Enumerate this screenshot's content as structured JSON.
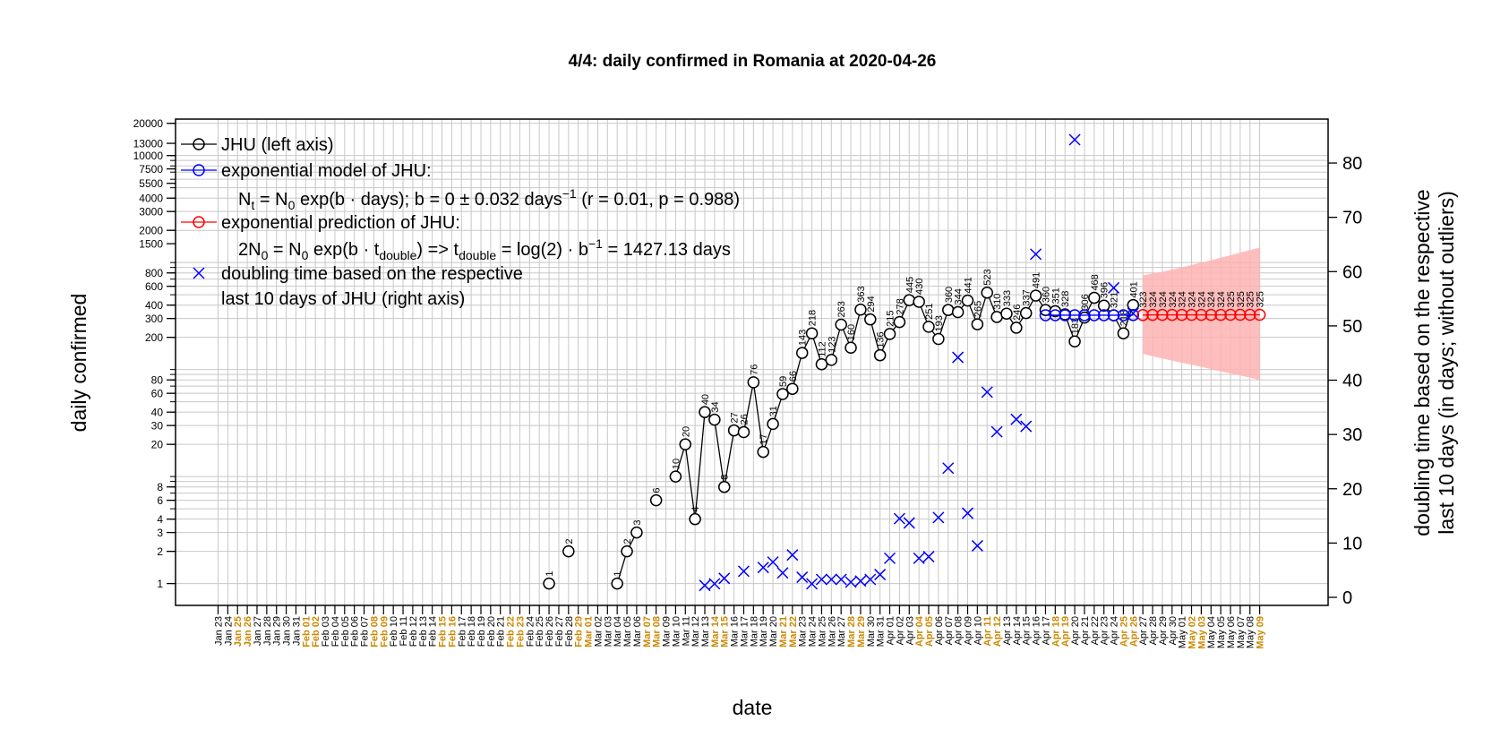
{
  "colors": {
    "observed": "#000000",
    "model": "#0000ff",
    "prediction": "#ff0000",
    "doubling": "#0000ff",
    "band": "#ffb3b3",
    "grid": "#c8c8c8",
    "weekend": "#cc8800",
    "date_text": "#000000"
  },
  "chart_data": {
    "type": "scatter",
    "title": "4/4: daily confirmed in Romania at 2020-04-26",
    "xlabel": "date",
    "ylabel_left": "daily confirmed",
    "ylabel_right_line1": "doubling time based on the respective",
    "ylabel_right_line2": "last 10 days (in days; without outliers)",
    "left_axis_log": true,
    "left_ticks": [
      "20000",
      "13000",
      "10000",
      "7500",
      "5500",
      "4000",
      "3000",
      "2000",
      "1500",
      "800",
      "600",
      "400",
      "300",
      "200",
      "80",
      "60",
      "40",
      "30",
      "20",
      "8",
      "6",
      "4",
      "3",
      "2",
      "1"
    ],
    "right_ylim": [
      0,
      85
    ],
    "right_ticks": [
      "0",
      "10",
      "20",
      "30",
      "40",
      "50",
      "60",
      "70",
      "80"
    ],
    "grid": true,
    "x_dates": [
      "Jan 23",
      "Jan 24",
      "Jan 25",
      "Jan 26",
      "Jan 27",
      "Jan 28",
      "Jan 29",
      "Jan 30",
      "Jan 31",
      "Feb 01",
      "Feb 02",
      "Feb 03",
      "Feb 04",
      "Feb 05",
      "Feb 06",
      "Feb 07",
      "Feb 08",
      "Feb 09",
      "Feb 10",
      "Feb 11",
      "Feb 12",
      "Feb 13",
      "Feb 14",
      "Feb 15",
      "Feb 16",
      "Feb 17",
      "Feb 18",
      "Feb 19",
      "Feb 20",
      "Feb 21",
      "Feb 22",
      "Feb 23",
      "Feb 24",
      "Feb 25",
      "Feb 26",
      "Feb 27",
      "Feb 28",
      "Feb 29",
      "Mar 01",
      "Mar 02",
      "Mar 03",
      "Mar 04",
      "Mar 05",
      "Mar 06",
      "Mar 07",
      "Mar 08",
      "Mar 09",
      "Mar 10",
      "Mar 11",
      "Mar 12",
      "Mar 13",
      "Mar 14",
      "Mar 15",
      "Mar 16",
      "Mar 17",
      "Mar 18",
      "Mar 19",
      "Mar 20",
      "Mar 21",
      "Mar 22",
      "Mar 23",
      "Mar 24",
      "Mar 25",
      "Mar 26",
      "Mar 27",
      "Mar 28",
      "Mar 29",
      "Mar 30",
      "Mar 31",
      "Apr 01",
      "Apr 02",
      "Apr 03",
      "Apr 04",
      "Apr 05",
      "Apr 06",
      "Apr 07",
      "Apr 08",
      "Apr 09",
      "Apr 10",
      "Apr 11",
      "Apr 12",
      "Apr 13",
      "Apr 14",
      "Apr 15",
      "Apr 16",
      "Apr 17",
      "Apr 18",
      "Apr 19",
      "Apr 20",
      "Apr 21",
      "Apr 22",
      "Apr 23",
      "Apr 24",
      "Apr 25",
      "Apr 26",
      "Apr 27",
      "Apr 28",
      "Apr 29",
      "Apr 30",
      "May 01",
      "May 02",
      "May 03",
      "May 04",
      "May 05",
      "May 06",
      "May 07",
      "May 08",
      "May 09"
    ],
    "weekend_dates": [
      "Jan 25",
      "Jan 26",
      "Feb 01",
      "Feb 02",
      "Feb 08",
      "Feb 09",
      "Feb 15",
      "Feb 16",
      "Feb 22",
      "Feb 23",
      "Feb 29",
      "Mar 01",
      "Mar 07",
      "Mar 08",
      "Mar 14",
      "Mar 15",
      "Mar 21",
      "Mar 22",
      "Mar 28",
      "Mar 29",
      "Apr 04",
      "Apr 05",
      "Apr 11",
      "Apr 12",
      "Apr 18",
      "Apr 19",
      "Apr 25",
      "Apr 26",
      "May 02",
      "May 03",
      "May 09"
    ],
    "series": [
      {
        "name": "JHU (left axis)",
        "points": [
          {
            "date": "Feb 26",
            "value": 1
          },
          {
            "date": "Feb 28",
            "value": 2
          },
          {
            "date": "Mar 04",
            "value": 1
          },
          {
            "date": "Mar 05",
            "value": 2
          },
          {
            "date": "Mar 06",
            "value": 3
          },
          {
            "date": "Mar 08",
            "value": 6
          },
          {
            "date": "Mar 10",
            "value": 10
          },
          {
            "date": "Mar 11",
            "value": 20
          },
          {
            "date": "Mar 12",
            "value": 4
          },
          {
            "date": "Mar 13",
            "value": 40
          },
          {
            "date": "Mar 14",
            "value": 34
          },
          {
            "date": "Mar 15",
            "value": 8
          },
          {
            "date": "Mar 16",
            "value": 27
          },
          {
            "date": "Mar 17",
            "value": 26
          },
          {
            "date": "Mar 18",
            "value": 76
          },
          {
            "date": "Mar 19",
            "value": 17
          },
          {
            "date": "Mar 20",
            "value": 31
          },
          {
            "date": "Mar 21",
            "value": 59
          },
          {
            "date": "Mar 22",
            "value": 66
          },
          {
            "date": "Mar 23",
            "value": 143
          },
          {
            "date": "Mar 24",
            "value": 218
          },
          {
            "date": "Mar 25",
            "value": 112
          },
          {
            "date": "Mar 26",
            "value": 123
          },
          {
            "date": "Mar 27",
            "value": 263
          },
          {
            "date": "Mar 28",
            "value": 160
          },
          {
            "date": "Mar 29",
            "value": 363
          },
          {
            "date": "Mar 30",
            "value": 294
          },
          {
            "date": "Mar 31",
            "value": 136
          },
          {
            "date": "Apr 01",
            "value": 215
          },
          {
            "date": "Apr 02",
            "value": 278
          },
          {
            "date": "Apr 03",
            "value": 445
          },
          {
            "date": "Apr 04",
            "value": 430
          },
          {
            "date": "Apr 05",
            "value": 251
          },
          {
            "date": "Apr 06",
            "value": 193
          },
          {
            "date": "Apr 07",
            "value": 360
          },
          {
            "date": "Apr 08",
            "value": 344
          },
          {
            "date": "Apr 09",
            "value": 441
          },
          {
            "date": "Apr 10",
            "value": 265
          },
          {
            "date": "Apr 11",
            "value": 523
          },
          {
            "date": "Apr 12",
            "value": 310
          },
          {
            "date": "Apr 13",
            "value": 333
          },
          {
            "date": "Apr 14",
            "value": 246
          },
          {
            "date": "Apr 15",
            "value": 337
          },
          {
            "date": "Apr 16",
            "value": 491
          },
          {
            "date": "Apr 17",
            "value": 360
          },
          {
            "date": "Apr 18",
            "value": 351
          },
          {
            "date": "Apr 19",
            "value": 328
          },
          {
            "date": "Apr 20",
            "value": 183
          },
          {
            "date": "Apr 21",
            "value": 306
          },
          {
            "date": "Apr 22",
            "value": 468
          },
          {
            "date": "Apr 23",
            "value": 396
          },
          {
            "date": "Apr 24",
            "value": 321
          },
          {
            "date": "Apr 25",
            "value": 218
          },
          {
            "date": "Apr 26",
            "value": 401
          }
        ]
      },
      {
        "name": "exponential model of JHU:",
        "dates": [
          "Apr 17",
          "Apr 18",
          "Apr 19",
          "Apr 20",
          "Apr 21",
          "Apr 22",
          "Apr 23",
          "Apr 24",
          "Apr 25",
          "Apr 26"
        ],
        "values": [
          322,
          322,
          322,
          322,
          322,
          322,
          322,
          322,
          322,
          323
        ]
      },
      {
        "name": "exponential prediction of JHU:",
        "dates": [
          "Apr 27",
          "Apr 28",
          "Apr 29",
          "Apr 30",
          "May 01",
          "May 02",
          "May 03",
          "May 04",
          "May 05",
          "May 06",
          "May 07",
          "May 08",
          "May 09"
        ],
        "values": [
          323,
          324,
          324,
          324,
          324,
          324,
          324,
          324,
          324,
          325,
          325,
          325,
          325
        ],
        "band_lower": [
          140,
          133,
          127,
          121,
          116,
          111,
          106,
          101,
          96,
          92,
          88,
          84,
          80
        ],
        "band_upper": [
          760,
          790,
          820,
          860,
          900,
          950,
          1000,
          1050,
          1110,
          1170,
          1240,
          1310,
          1380
        ]
      },
      {
        "name": "doubling time based on the respective last 10 days of JHU (right axis)",
        "axis": "right",
        "points": [
          {
            "date": "Mar 13",
            "value": 2.2
          },
          {
            "date": "Mar 14",
            "value": 2.5
          },
          {
            "date": "Mar 15",
            "value": 3.5
          },
          {
            "date": "Mar 17",
            "value": 4.8
          },
          {
            "date": "Mar 19",
            "value": 5.5
          },
          {
            "date": "Mar 20",
            "value": 6.5
          },
          {
            "date": "Mar 21",
            "value": 4.5
          },
          {
            "date": "Mar 22",
            "value": 7.8
          },
          {
            "date": "Mar 23",
            "value": 3.7
          },
          {
            "date": "Mar 24",
            "value": 2.5
          },
          {
            "date": "Mar 25",
            "value": 3.3
          },
          {
            "date": "Mar 26",
            "value": 3.3
          },
          {
            "date": "Mar 27",
            "value": 3.3
          },
          {
            "date": "Mar 28",
            "value": 2.8
          },
          {
            "date": "Mar 29",
            "value": 3.0
          },
          {
            "date": "Mar 30",
            "value": 3.3
          },
          {
            "date": "Mar 31",
            "value": 4.2
          },
          {
            "date": "Apr 01",
            "value": 7.2
          },
          {
            "date": "Apr 02",
            "value": 14.5
          },
          {
            "date": "Apr 03",
            "value": 13.7
          },
          {
            "date": "Apr 04",
            "value": 7.2
          },
          {
            "date": "Apr 05",
            "value": 7.5
          },
          {
            "date": "Apr 06",
            "value": 14.7
          },
          {
            "date": "Apr 07",
            "value": 23.8
          },
          {
            "date": "Apr 08",
            "value": 44.2
          },
          {
            "date": "Apr 09",
            "value": 15.5
          },
          {
            "date": "Apr 10",
            "value": 9.5
          },
          {
            "date": "Apr 11",
            "value": 37.8
          },
          {
            "date": "Apr 12",
            "value": 30.5
          },
          {
            "date": "Apr 14",
            "value": 32.8
          },
          {
            "date": "Apr 15",
            "value": 31.5
          },
          {
            "date": "Apr 16",
            "value": 63.2
          },
          {
            "date": "Apr 20",
            "value": 84.3
          },
          {
            "date": "Apr 24",
            "value": 57.0
          },
          {
            "date": "Apr 26",
            "value": 52.3
          }
        ]
      }
    ],
    "legend": {
      "position": "top-left",
      "entry1": "JHU (left axis)",
      "entry2": "exponential model of JHU:",
      "formula1_a": "N",
      "formula1_b": "t",
      "formula1_c": " = N",
      "formula1_d": "0",
      "formula1_e": " exp(b · days); b = 0 ± 0.032 days",
      "formula1_f": "−1",
      "formula1_g": " (r = 0.01, p = 0.988)",
      "entry3": "exponential prediction of JHU:",
      "formula2_a": "2N",
      "formula2_b": "0",
      "formula2_c": " = N",
      "formula2_d": "0",
      "formula2_e": " exp(b · t",
      "formula2_f": "double",
      "formula2_g": ") => t",
      "formula2_h": "double",
      "formula2_i": " = log(2) · b",
      "formula2_j": "−1",
      "formula2_k": " = 1427.13 days",
      "entry4_line1": "doubling time based on the respective",
      "entry4_line2": "last 10 days of JHU (right axis)"
    }
  }
}
